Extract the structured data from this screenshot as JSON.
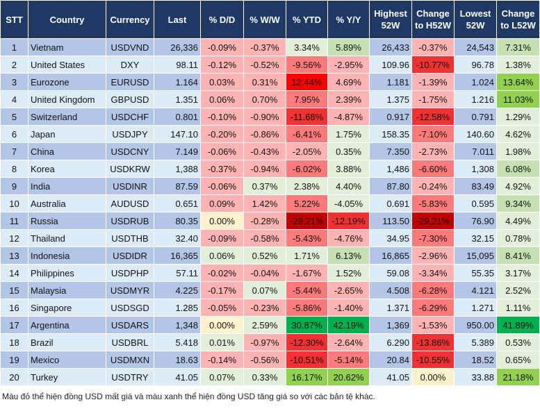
{
  "headers": [
    "STT",
    "Country",
    "Currency",
    "Last",
    "% D/D",
    "% W/W",
    "% YTD",
    "% Y/Y",
    "Highest 52W",
    "Change to H52W",
    "Lowest 52W",
    "Change to L52W"
  ],
  "colors": {
    "r1": "#ffb3b3",
    "r2": "#ff7a7a",
    "r3": "#f23232",
    "r4": "#ff0000",
    "r5": "#c00000",
    "y": "#fff2cc",
    "g1": "#e2efda",
    "g2": "#c6e0b4",
    "g3": "#92d050",
    "g4": "#00b050",
    "header": "#203864"
  },
  "rows": [
    {
      "stt": "1",
      "country": "Vietnam",
      "currency": "USDVND",
      "last": "26,336",
      "dd": "-0.09%",
      "ww": "-0.37%",
      "ytd": "3.34%",
      "yy": "5.89%",
      "high": "26,433",
      "ch": "-0.37%",
      "low": "24,543",
      "cl": "7.31%",
      "shade": [
        "r1",
        "r1",
        "g1",
        "g2",
        "r1",
        "g2"
      ]
    },
    {
      "stt": "2",
      "country": "United States",
      "currency": "DXY",
      "last": "98.11",
      "dd": "-0.12%",
      "ww": "-0.52%",
      "ytd": "-9.56%",
      "yy": "-2.95%",
      "high": "109.96",
      "ch": "-10.77%",
      "low": "96.78",
      "cl": "1.38%",
      "shade": [
        "r1",
        "r1",
        "r2",
        "r1",
        "r3",
        "g1"
      ]
    },
    {
      "stt": "3",
      "country": "Eurozone",
      "currency": "EURUSD",
      "last": "1.164",
      "dd": "0.03%",
      "ww": "0.31%",
      "ytd": "12.44%",
      "yy": "4.69%",
      "high": "1.181",
      "ch": "-1.39%",
      "low": "1.024",
      "cl": "13.64%",
      "shade": [
        "r1",
        "r1",
        "r4",
        "r1",
        "r1",
        "g3"
      ]
    },
    {
      "stt": "4",
      "country": "United Kingdom",
      "currency": "GBPUSD",
      "last": "1.351",
      "dd": "0.06%",
      "ww": "0.70%",
      "ytd": "7.95%",
      "yy": "2.39%",
      "high": "1.375",
      "ch": "-1.75%",
      "low": "1.216",
      "cl": "11.03%",
      "shade": [
        "r1",
        "r1",
        "r2",
        "r1",
        "r1",
        "g3"
      ]
    },
    {
      "stt": "5",
      "country": "Switzerland",
      "currency": "USDCHF",
      "last": "0.801",
      "dd": "-0.10%",
      "ww": "-0.90%",
      "ytd": "-11.68%",
      "yy": "-4.87%",
      "high": "0.917",
      "ch": "-12.58%",
      "low": "0.791",
      "cl": "1.29%",
      "shade": [
        "r1",
        "r1",
        "r3",
        "r1",
        "r3",
        "g1"
      ]
    },
    {
      "stt": "6",
      "country": "Japan",
      "currency": "USDJPY",
      "last": "147.10",
      "dd": "-0.20%",
      "ww": "-0.86%",
      "ytd": "-6.41%",
      "yy": "1.75%",
      "high": "158.35",
      "ch": "-7.10%",
      "low": "140.60",
      "cl": "4.62%",
      "shade": [
        "r1",
        "r1",
        "r2",
        "g1",
        "r2",
        "g1"
      ]
    },
    {
      "stt": "7",
      "country": "China",
      "currency": "USDCNY",
      "last": "7.149",
      "dd": "-0.06%",
      "ww": "-0.43%",
      "ytd": "-2.05%",
      "yy": "0.35%",
      "high": "7.350",
      "ch": "-2.73%",
      "low": "7.011",
      "cl": "1.98%",
      "shade": [
        "r1",
        "r1",
        "r1",
        "g1",
        "r1",
        "g1"
      ]
    },
    {
      "stt": "8",
      "country": "Korea",
      "currency": "USDKRW",
      "last": "1,388",
      "dd": "-0.37%",
      "ww": "-0.94%",
      "ytd": "-6.02%",
      "yy": "3.88%",
      "high": "1,486",
      "ch": "-6.60%",
      "low": "1,308",
      "cl": "6.08%",
      "shade": [
        "r1",
        "r1",
        "r2",
        "g1",
        "r2",
        "g2"
      ]
    },
    {
      "stt": "9",
      "country": "India",
      "currency": "USDINR",
      "last": "87.59",
      "dd": "-0.06%",
      "ww": "0.37%",
      "ytd": "2.38%",
      "yy": "4.40%",
      "high": "87.80",
      "ch": "-0.24%",
      "low": "83.49",
      "cl": "4.92%",
      "shade": [
        "r1",
        "g1",
        "g1",
        "g1",
        "r1",
        "g1"
      ]
    },
    {
      "stt": "10",
      "country": "Australia",
      "currency": "AUDUSD",
      "last": "0.651",
      "dd": "0.09%",
      "ww": "1.42%",
      "ytd": "5.22%",
      "yy": "-4.05%",
      "high": "0.691",
      "ch": "-5.83%",
      "low": "0.595",
      "cl": "9.34%",
      "shade": [
        "r1",
        "r1",
        "r2",
        "g1",
        "r2",
        "g2"
      ]
    },
    {
      "stt": "11",
      "country": "Russia",
      "currency": "USDRUB",
      "last": "80.35",
      "dd": "0.00%",
      "ww": "-0.28%",
      "ytd": "-29.21%",
      "yy": "-12.19%",
      "high": "113.50",
      "ch": "-29.21%",
      "low": "76.90",
      "cl": "4.49%",
      "shade": [
        "y",
        "r1",
        "r5",
        "r3",
        "r5",
        "g1"
      ]
    },
    {
      "stt": "12",
      "country": "Thailand",
      "currency": "USDTHB",
      "last": "32.40",
      "dd": "-0.09%",
      "ww": "-0.58%",
      "ytd": "-5.43%",
      "yy": "-4.76%",
      "high": "34.95",
      "ch": "-7.30%",
      "low": "32.15",
      "cl": "0.78%",
      "shade": [
        "r1",
        "r1",
        "r2",
        "r1",
        "r2",
        "g1"
      ]
    },
    {
      "stt": "13",
      "country": "Indonesia",
      "currency": "USDIDR",
      "last": "16,365",
      "dd": "0.06%",
      "ww": "0.52%",
      "ytd": "1.71%",
      "yy": "6.13%",
      "high": "16,865",
      "ch": "-2.96%",
      "low": "15,095",
      "cl": "8.41%",
      "shade": [
        "g1",
        "g1",
        "g1",
        "g2",
        "r1",
        "g2"
      ]
    },
    {
      "stt": "14",
      "country": "Philippines",
      "currency": "USDPHP",
      "last": "57.11",
      "dd": "-0.02%",
      "ww": "-0.04%",
      "ytd": "-1.67%",
      "yy": "1.52%",
      "high": "59.08",
      "ch": "-3.34%",
      "low": "55.35",
      "cl": "3.17%",
      "shade": [
        "r1",
        "r1",
        "r1",
        "g1",
        "r1",
        "g1"
      ]
    },
    {
      "stt": "15",
      "country": "Malaysia",
      "currency": "USDMYR",
      "last": "4.225",
      "dd": "-0.17%",
      "ww": "0.07%",
      "ytd": "-5.44%",
      "yy": "-2.65%",
      "high": "4.508",
      "ch": "-6.28%",
      "low": "4.121",
      "cl": "2.52%",
      "shade": [
        "r1",
        "g1",
        "r2",
        "r1",
        "r2",
        "g1"
      ]
    },
    {
      "stt": "16",
      "country": "Singapore",
      "currency": "USDSGD",
      "last": "1.285",
      "dd": "-0.05%",
      "ww": "-0.23%",
      "ytd": "-5.86%",
      "yy": "-1.40%",
      "high": "1.371",
      "ch": "-6.29%",
      "low": "1.271",
      "cl": "1.11%",
      "shade": [
        "r1",
        "r1",
        "r2",
        "r1",
        "r2",
        "g1"
      ]
    },
    {
      "stt": "17",
      "country": "Argentina",
      "currency": "USDARS",
      "last": "1,348",
      "dd": "0.00%",
      "ww": "2.59%",
      "ytd": "30.87%",
      "yy": "42.19%",
      "high": "1,369",
      "ch": "-1.53%",
      "low": "950.00",
      "cl": "41.89%",
      "shade": [
        "y",
        "g1",
        "g4",
        "g4",
        "r1",
        "g4"
      ]
    },
    {
      "stt": "18",
      "country": "Brazil",
      "currency": "USDBRL",
      "last": "5.418",
      "dd": "0.01%",
      "ww": "-0.97%",
      "ytd": "-12.30%",
      "yy": "-2.64%",
      "high": "6.290",
      "ch": "-13.86%",
      "low": "5.389",
      "cl": "0.53%",
      "shade": [
        "g1",
        "r1",
        "r3",
        "r1",
        "r3",
        "g1"
      ]
    },
    {
      "stt": "19",
      "country": "Mexico",
      "currency": "USDMXN",
      "last": "18.63",
      "dd": "-0.14%",
      "ww": "-0.56%",
      "ytd": "-10.51%",
      "yy": "-5.14%",
      "high": "20.84",
      "ch": "-10.55%",
      "low": "18.52",
      "cl": "0.65%",
      "shade": [
        "r1",
        "r1",
        "r3",
        "r2",
        "r3",
        "g1"
      ]
    },
    {
      "stt": "20",
      "country": "Turkey",
      "currency": "USDTRY",
      "last": "41.05",
      "dd": "0.07%",
      "ww": "0.33%",
      "ytd": "16.17%",
      "yy": "20.62%",
      "high": "41.05",
      "ch": "0.00%",
      "low": "33.88",
      "cl": "21.18%",
      "shade": [
        "g1",
        "g1",
        "g3",
        "g3",
        "y",
        "g3"
      ]
    }
  ],
  "note": "Màu đỏ thể hiện đồng USD mất giá và màu xanh thể hiện đồng USD tăng giá so với các bản tệ khác."
}
